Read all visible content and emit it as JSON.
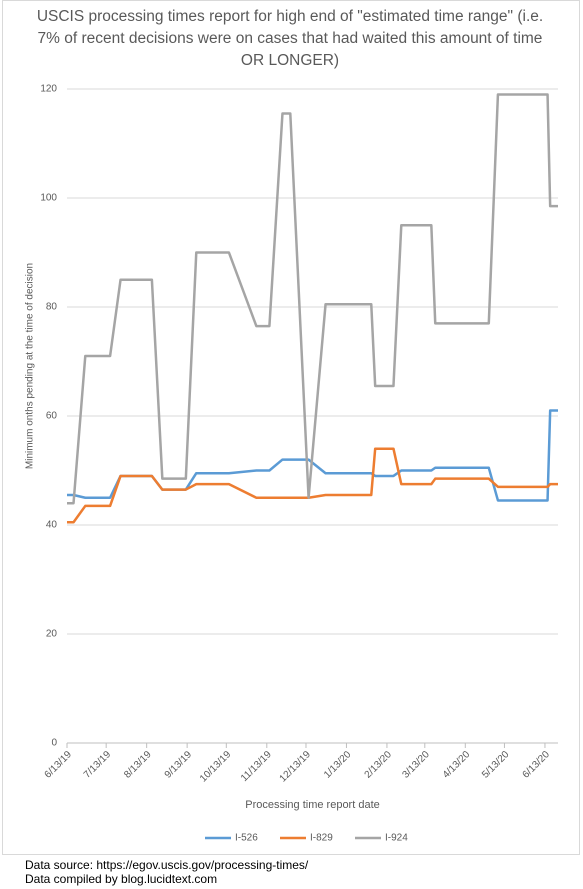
{
  "chart_data": {
    "type": "line",
    "title": "USCIS processing times report for high end of \"estimated time range\" (i.e. 7% of recent decisions were on cases that had waited this amount of time OR LONGER)",
    "xlabel": "Processing time report date",
    "ylabel": "Minimum onths pending at the time of decision",
    "xlim": [
      "6/13/19",
      "6/23/20"
    ],
    "xticks": [
      "6/13/19",
      "7/13/19",
      "8/13/19",
      "9/13/19",
      "10/13/19",
      "11/13/19",
      "12/13/19",
      "1/13/20",
      "2/13/20",
      "3/13/20",
      "4/13/20",
      "5/13/20",
      "6/13/20"
    ],
    "ylim": [
      0,
      120
    ],
    "yticks": [
      0,
      20,
      40,
      60,
      80,
      100,
      120
    ],
    "grid": true,
    "legend": "bottom",
    "series": [
      {
        "name": "I-526",
        "color": "#5b9bd5",
        "x": [
          "6/13/19",
          "6/18/19",
          "6/27/19",
          "7/16/19",
          "7/24/19",
          "8/17/19",
          "8/25/19",
          "9/12/19",
          "9/20/19",
          "10/15/19",
          "11/5/19",
          "11/15/19",
          "11/25/19",
          "12/15/19",
          "12/28/19",
          "2/1/20",
          "2/4/20",
          "2/18/20",
          "2/24/20",
          "3/18/20",
          "3/21/20",
          "5/1/20",
          "5/8/20",
          "6/15/20",
          "6/17/20",
          "6/23/20"
        ],
        "values": [
          45.5,
          45.5,
          45,
          45,
          49,
          49,
          46.5,
          46.5,
          49.5,
          49.5,
          50,
          50,
          52,
          52,
          49.5,
          49.5,
          49,
          49,
          50,
          50,
          50.5,
          50.5,
          44.5,
          44.5,
          61,
          61
        ]
      },
      {
        "name": "I-829",
        "color": "#ed7d31",
        "x": [
          "6/13/19",
          "6/18/19",
          "6/27/19",
          "7/16/19",
          "7/24/19",
          "8/17/19",
          "8/25/19",
          "9/12/19",
          "9/20/19",
          "10/15/19",
          "11/5/19",
          "11/15/19",
          "11/25/19",
          "12/15/19",
          "12/28/19",
          "2/1/20",
          "2/4/20",
          "2/18/20",
          "2/24/20",
          "3/18/20",
          "3/21/20",
          "5/1/20",
          "5/8/20",
          "6/15/20",
          "6/17/20",
          "6/23/20"
        ],
        "values": [
          40.5,
          40.5,
          43.5,
          43.5,
          49,
          49,
          46.5,
          46.5,
          47.5,
          47.5,
          45,
          45,
          45,
          45,
          45.5,
          45.5,
          54,
          54,
          47.5,
          47.5,
          48.5,
          48.5,
          47,
          47,
          47.5,
          47.5
        ]
      },
      {
        "name": "I-924",
        "color": "#a5a5a5",
        "x": [
          "6/13/19",
          "6/18/19",
          "6/27/19",
          "7/16/19",
          "7/24/19",
          "8/17/19",
          "8/25/19",
          "9/12/19",
          "9/20/19",
          "10/15/19",
          "11/5/19",
          "11/15/19",
          "11/25/19",
          "12/1/19",
          "12/15/19",
          "12/28/19",
          "2/1/20",
          "2/4/20",
          "2/18/20",
          "2/24/20",
          "3/18/20",
          "3/21/20",
          "5/1/20",
          "5/8/20",
          "6/15/20",
          "6/17/20",
          "6/23/20"
        ],
        "values": [
          44,
          44,
          71,
          71,
          85,
          85,
          48.5,
          48.5,
          90,
          90,
          76.5,
          76.5,
          115.5,
          115.5,
          45,
          80.5,
          80.5,
          65.5,
          65.5,
          95,
          95,
          77,
          77,
          119,
          119,
          98.5,
          98.5
        ]
      }
    ]
  },
  "source": [
    "Data source: https://egov.uscis.gov/processing-times/",
    "Data compiled by blog.lucidtext.com"
  ]
}
